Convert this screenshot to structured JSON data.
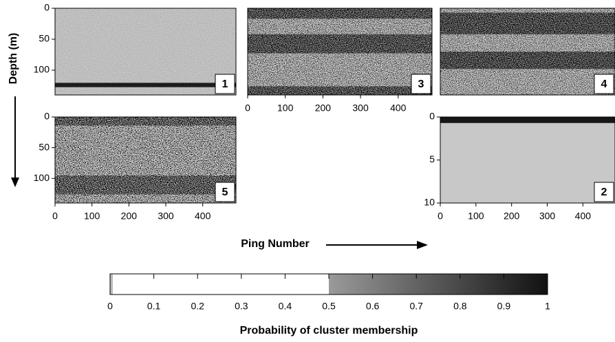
{
  "y_axis_label": "Depth (m)",
  "x_axis_label": "Ping Number",
  "panels": [
    {
      "label": "1",
      "xlim": [
        0,
        490
      ],
      "ylim": [
        0,
        140
      ],
      "yticks": [
        0,
        50,
        100
      ]
    },
    {
      "label": "3",
      "xlim": [
        0,
        490
      ],
      "ylim": [
        0,
        140
      ],
      "xticks": [
        0,
        100,
        200,
        300,
        400
      ]
    },
    {
      "label": "4",
      "xlim": [
        0,
        490
      ],
      "ylim": [
        0,
        140
      ]
    },
    {
      "label": "5",
      "xlim": [
        0,
        490
      ],
      "ylim": [
        0,
        140
      ],
      "yticks": [
        0,
        50,
        100
      ],
      "xticks": [
        0,
        100,
        200,
        300,
        400
      ]
    },
    {
      "label": "2",
      "xlim": [
        0,
        490
      ],
      "ylim": [
        0,
        10
      ],
      "yticks": [
        0,
        5,
        10
      ],
      "xticks": [
        0,
        100,
        200,
        300,
        400
      ]
    }
  ],
  "colorbar": {
    "title": "Probability of cluster membership",
    "lim": [
      0,
      1
    ],
    "ticks": [
      0,
      0.1,
      0.2,
      0.3,
      0.4,
      0.5,
      0.6,
      0.7,
      0.8,
      0.9,
      1
    ]
  }
}
